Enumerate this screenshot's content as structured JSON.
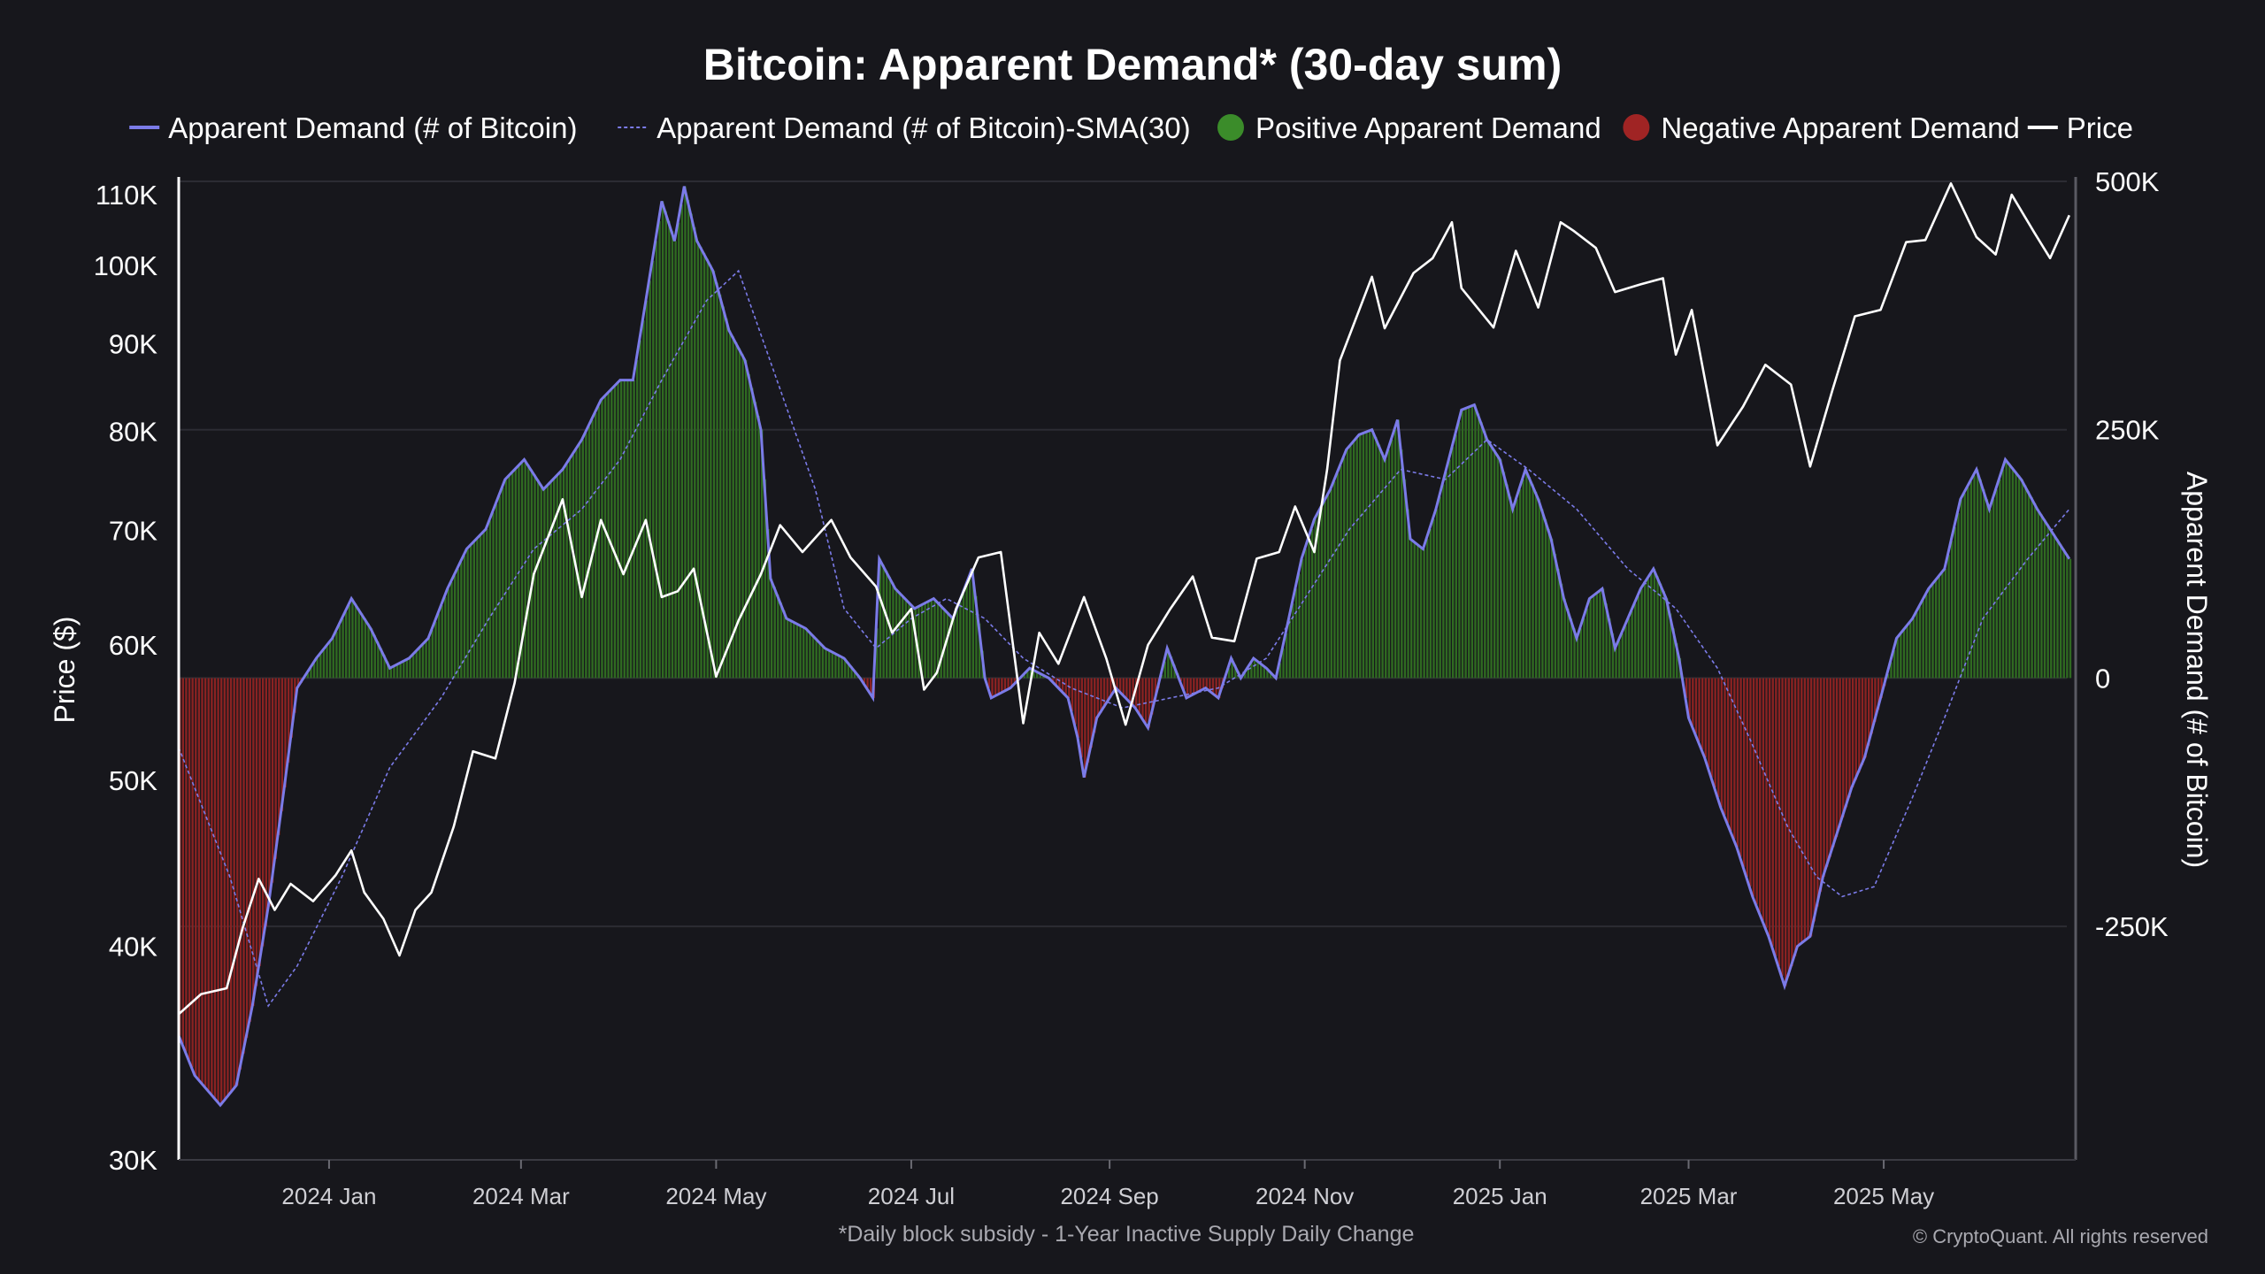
{
  "chart_data": {
    "type": "bar+line",
    "title": "Bitcoin: Apparent Demand* (30-day sum)",
    "footnote": "*Daily block subsidy - 1-Year Inactive Supply Daily Change",
    "credit": "© CryptoQuant. All rights reserved",
    "legend": [
      {
        "name": "Apparent Demand (# of Bitcoin)",
        "marker": "line",
        "color": "#7b7be8"
      },
      {
        "name": "Apparent Demand (# of Bitcoin)-SMA(30)",
        "marker": "dashed-line",
        "color": "#7b7be8"
      },
      {
        "name": "Positive Apparent Demand",
        "marker": "dot",
        "color": "#3b8c2a"
      },
      {
        "name": "Negative Apparent Demand",
        "marker": "dot",
        "color": "#a02424"
      },
      {
        "name": "Price",
        "marker": "line",
        "color": "#ffffff"
      }
    ],
    "legend_position": "top",
    "grid": true,
    "x_axis": {
      "type": "date",
      "range": [
        "2023-11-15",
        "2025-06-30"
      ],
      "ticks": [
        {
          "date": "2024-01-01",
          "label": "2024 Jan"
        },
        {
          "date": "2024-03-01",
          "label": "2024 Mar"
        },
        {
          "date": "2024-05-01",
          "label": "2024 May"
        },
        {
          "date": "2024-07-01",
          "label": "2024 Jul"
        },
        {
          "date": "2024-09-01",
          "label": "2024 Sep"
        },
        {
          "date": "2024-11-01",
          "label": "2024 Nov"
        },
        {
          "date": "2025-01-01",
          "label": "2025 Jan"
        },
        {
          "date": "2025-03-01",
          "label": "2025 Mar"
        },
        {
          "date": "2025-05-01",
          "label": "2025 May"
        }
      ]
    },
    "y_left": {
      "label": "Price ($)",
      "scale": "log",
      "range": [
        30000,
        112000
      ],
      "ticks": [
        {
          "value": 30000,
          "label": "30K"
        },
        {
          "value": 40000,
          "label": "40K"
        },
        {
          "value": 50000,
          "label": "50K"
        },
        {
          "value": 60000,
          "label": "60K"
        },
        {
          "value": 70000,
          "label": "70K"
        },
        {
          "value": 80000,
          "label": "80K"
        },
        {
          "value": 90000,
          "label": "90K"
        },
        {
          "value": 100000,
          "label": "100K"
        },
        {
          "value": 110000,
          "label": "110K"
        }
      ]
    },
    "y_right": {
      "label": "Apparent Demand (# of Bitcoin)",
      "scale": "linear",
      "range": [
        -485000,
        500000
      ],
      "ticks": [
        {
          "value": 500000,
          "label": "500K"
        },
        {
          "value": 250000,
          "label": "250K"
        },
        {
          "value": 0,
          "label": "0"
        },
        {
          "value": -250000,
          "label": "-250K"
        }
      ]
    },
    "demand": [
      [
        "2023-11-15",
        -360000
      ],
      [
        "2023-11-20",
        -400000
      ],
      [
        "2023-11-28",
        -430000
      ],
      [
        "2023-12-03",
        -410000
      ],
      [
        "2023-12-08",
        -330000
      ],
      [
        "2023-12-13",
        -230000
      ],
      [
        "2023-12-18",
        -110000
      ],
      [
        "2023-12-22",
        -10000
      ],
      [
        "2023-12-28",
        20000
      ],
      [
        "2024-01-02",
        40000
      ],
      [
        "2024-01-08",
        80000
      ],
      [
        "2024-01-14",
        50000
      ],
      [
        "2024-01-20",
        10000
      ],
      [
        "2024-01-26",
        20000
      ],
      [
        "2024-02-01",
        40000
      ],
      [
        "2024-02-07",
        90000
      ],
      [
        "2024-02-13",
        130000
      ],
      [
        "2024-02-19",
        150000
      ],
      [
        "2024-02-25",
        200000
      ],
      [
        "2024-03-02",
        220000
      ],
      [
        "2024-03-08",
        190000
      ],
      [
        "2024-03-14",
        210000
      ],
      [
        "2024-03-20",
        240000
      ],
      [
        "2024-03-26",
        280000
      ],
      [
        "2024-04-01",
        300000
      ],
      [
        "2024-04-05",
        300000
      ],
      [
        "2024-04-09",
        380000
      ],
      [
        "2024-04-14",
        480000
      ],
      [
        "2024-04-18",
        440000
      ],
      [
        "2024-04-21",
        495000
      ],
      [
        "2024-04-25",
        440000
      ],
      [
        "2024-04-30",
        410000
      ],
      [
        "2024-05-05",
        350000
      ],
      [
        "2024-05-10",
        320000
      ],
      [
        "2024-05-15",
        250000
      ],
      [
        "2024-05-18",
        100000
      ],
      [
        "2024-05-23",
        60000
      ],
      [
        "2024-05-29",
        50000
      ],
      [
        "2024-06-04",
        30000
      ],
      [
        "2024-06-10",
        20000
      ],
      [
        "2024-06-15",
        0
      ],
      [
        "2024-06-19",
        -20000
      ],
      [
        "2024-06-21",
        120000
      ],
      [
        "2024-06-26",
        90000
      ],
      [
        "2024-07-02",
        70000
      ],
      [
        "2024-07-08",
        80000
      ],
      [
        "2024-07-14",
        60000
      ],
      [
        "2024-07-20",
        110000
      ],
      [
        "2024-07-24",
        0
      ],
      [
        "2024-07-26",
        -20000
      ],
      [
        "2024-08-01",
        -10000
      ],
      [
        "2024-08-07",
        10000
      ],
      [
        "2024-08-13",
        0
      ],
      [
        "2024-08-19",
        -20000
      ],
      [
        "2024-08-22",
        -60000
      ],
      [
        "2024-08-24",
        -100000
      ],
      [
        "2024-08-28",
        -40000
      ],
      [
        "2024-09-03",
        -10000
      ],
      [
        "2024-09-09",
        -30000
      ],
      [
        "2024-09-13",
        -50000
      ],
      [
        "2024-09-19",
        30000
      ],
      [
        "2024-09-25",
        -20000
      ],
      [
        "2024-10-01",
        -10000
      ],
      [
        "2024-10-05",
        -20000
      ],
      [
        "2024-10-09",
        20000
      ],
      [
        "2024-10-12",
        0
      ],
      [
        "2024-10-16",
        20000
      ],
      [
        "2024-10-20",
        10000
      ],
      [
        "2024-10-23",
        0
      ],
      [
        "2024-10-27",
        60000
      ],
      [
        "2024-10-31",
        120000
      ],
      [
        "2024-11-04",
        160000
      ],
      [
        "2024-11-09",
        190000
      ],
      [
        "2024-11-14",
        230000
      ],
      [
        "2024-11-18",
        245000
      ],
      [
        "2024-11-22",
        250000
      ],
      [
        "2024-11-26",
        220000
      ],
      [
        "2024-11-30",
        260000
      ],
      [
        "2024-12-04",
        140000
      ],
      [
        "2024-12-08",
        130000
      ],
      [
        "2024-12-12",
        170000
      ],
      [
        "2024-12-16",
        220000
      ],
      [
        "2024-12-20",
        270000
      ],
      [
        "2024-12-24",
        275000
      ],
      [
        "2024-12-28",
        240000
      ],
      [
        "2025-01-01",
        220000
      ],
      [
        "2025-01-05",
        170000
      ],
      [
        "2025-01-09",
        210000
      ],
      [
        "2025-01-13",
        180000
      ],
      [
        "2025-01-17",
        140000
      ],
      [
        "2025-01-21",
        80000
      ],
      [
        "2025-01-25",
        40000
      ],
      [
        "2025-01-29",
        80000
      ],
      [
        "2025-02-02",
        90000
      ],
      [
        "2025-02-06",
        30000
      ],
      [
        "2025-02-10",
        60000
      ],
      [
        "2025-02-14",
        90000
      ],
      [
        "2025-02-18",
        110000
      ],
      [
        "2025-02-22",
        80000
      ],
      [
        "2025-02-26",
        20000
      ],
      [
        "2025-03-01",
        -40000
      ],
      [
        "2025-03-06",
        -80000
      ],
      [
        "2025-03-11",
        -130000
      ],
      [
        "2025-03-16",
        -170000
      ],
      [
        "2025-03-21",
        -220000
      ],
      [
        "2025-03-26",
        -260000
      ],
      [
        "2025-03-31",
        -310000
      ],
      [
        "2025-04-04",
        -270000
      ],
      [
        "2025-04-08",
        -260000
      ],
      [
        "2025-04-12",
        -200000
      ],
      [
        "2025-04-17",
        -150000
      ],
      [
        "2025-04-21",
        -110000
      ],
      [
        "2025-04-25",
        -80000
      ],
      [
        "2025-04-30",
        -20000
      ],
      [
        "2025-05-05",
        40000
      ],
      [
        "2025-05-10",
        60000
      ],
      [
        "2025-05-15",
        90000
      ],
      [
        "2025-05-20",
        110000
      ],
      [
        "2025-05-25",
        180000
      ],
      [
        "2025-05-30",
        210000
      ],
      [
        "2025-06-03",
        170000
      ],
      [
        "2025-06-08",
        220000
      ],
      [
        "2025-06-13",
        200000
      ],
      [
        "2025-06-18",
        170000
      ],
      [
        "2025-06-24",
        140000
      ],
      [
        "2025-06-28",
        120000
      ]
    ],
    "demand_sma": [
      [
        "2023-11-15",
        -70000
      ],
      [
        "2023-12-01",
        -200000
      ],
      [
        "2023-12-13",
        -330000
      ],
      [
        "2023-12-22",
        -290000
      ],
      [
        "2024-01-05",
        -200000
      ],
      [
        "2024-01-20",
        -90000
      ],
      [
        "2024-02-05",
        -20000
      ],
      [
        "2024-02-20",
        60000
      ],
      [
        "2024-03-05",
        130000
      ],
      [
        "2024-03-20",
        170000
      ],
      [
        "2024-04-01",
        220000
      ],
      [
        "2024-04-14",
        300000
      ],
      [
        "2024-04-28",
        380000
      ],
      [
        "2024-05-08",
        410000
      ],
      [
        "2024-05-20",
        300000
      ],
      [
        "2024-06-01",
        190000
      ],
      [
        "2024-06-10",
        70000
      ],
      [
        "2024-06-20",
        30000
      ],
      [
        "2024-07-01",
        60000
      ],
      [
        "2024-07-12",
        80000
      ],
      [
        "2024-07-24",
        60000
      ],
      [
        "2024-08-05",
        20000
      ],
      [
        "2024-08-20",
        -10000
      ],
      [
        "2024-09-05",
        -30000
      ],
      [
        "2024-09-20",
        -20000
      ],
      [
        "2024-10-05",
        -10000
      ],
      [
        "2024-10-20",
        20000
      ],
      [
        "2024-11-01",
        80000
      ],
      [
        "2024-11-15",
        150000
      ],
      [
        "2024-12-01",
        210000
      ],
      [
        "2024-12-15",
        200000
      ],
      [
        "2024-12-28",
        240000
      ],
      [
        "2025-01-10",
        210000
      ],
      [
        "2025-01-25",
        170000
      ],
      [
        "2025-02-10",
        110000
      ],
      [
        "2025-02-25",
        70000
      ],
      [
        "2025-03-10",
        10000
      ],
      [
        "2025-03-20",
        -60000
      ],
      [
        "2025-04-01",
        -150000
      ],
      [
        "2025-04-10",
        -200000
      ],
      [
        "2025-04-18",
        -220000
      ],
      [
        "2025-04-28",
        -210000
      ],
      [
        "2025-05-10",
        -120000
      ],
      [
        "2025-05-20",
        -40000
      ],
      [
        "2025-06-01",
        60000
      ],
      [
        "2025-06-15",
        120000
      ],
      [
        "2025-06-28",
        170000
      ]
    ],
    "price": [
      [
        "2023-11-15",
        36500
      ],
      [
        "2023-11-22",
        37500
      ],
      [
        "2023-11-30",
        37800
      ],
      [
        "2023-12-05",
        41000
      ],
      [
        "2023-12-10",
        43800
      ],
      [
        "2023-12-15",
        42000
      ],
      [
        "2023-12-20",
        43500
      ],
      [
        "2023-12-27",
        42500
      ],
      [
        "2024-01-03",
        44000
      ],
      [
        "2024-01-08",
        45500
      ],
      [
        "2024-01-12",
        43000
      ],
      [
        "2024-01-18",
        41500
      ],
      [
        "2024-01-23",
        39500
      ],
      [
        "2024-01-28",
        42000
      ],
      [
        "2024-02-02",
        43000
      ],
      [
        "2024-02-09",
        47000
      ],
      [
        "2024-02-15",
        52000
      ],
      [
        "2024-02-22",
        51500
      ],
      [
        "2024-02-28",
        57000
      ],
      [
        "2024-03-05",
        66000
      ],
      [
        "2024-03-14",
        73000
      ],
      [
        "2024-03-20",
        64000
      ],
      [
        "2024-03-26",
        71000
      ],
      [
        "2024-04-02",
        66000
      ],
      [
        "2024-04-09",
        71000
      ],
      [
        "2024-04-14",
        64000
      ],
      [
        "2024-04-19",
        64500
      ],
      [
        "2024-04-24",
        66500
      ],
      [
        "2024-05-01",
        57500
      ],
      [
        "2024-05-08",
        62000
      ],
      [
        "2024-05-15",
        66000
      ],
      [
        "2024-05-21",
        70500
      ],
      [
        "2024-05-28",
        68000
      ],
      [
        "2024-06-06",
        71000
      ],
      [
        "2024-06-12",
        67500
      ],
      [
        "2024-06-20",
        64900
      ],
      [
        "2024-06-25",
        61000
      ],
      [
        "2024-07-01",
        63000
      ],
      [
        "2024-07-05",
        56500
      ],
      [
        "2024-07-09",
        57800
      ],
      [
        "2024-07-15",
        63000
      ],
      [
        "2024-07-22",
        67500
      ],
      [
        "2024-07-29",
        68000
      ],
      [
        "2024-08-05",
        54000
      ],
      [
        "2024-08-10",
        61000
      ],
      [
        "2024-08-16",
        58500
      ],
      [
        "2024-08-24",
        64000
      ],
      [
        "2024-08-31",
        58900
      ],
      [
        "2024-09-06",
        53900
      ],
      [
        "2024-09-13",
        60000
      ],
      [
        "2024-09-20",
        63000
      ],
      [
        "2024-09-27",
        65800
      ],
      [
        "2024-10-03",
        60600
      ],
      [
        "2024-10-10",
        60300
      ],
      [
        "2024-10-17",
        67400
      ],
      [
        "2024-10-24",
        68000
      ],
      [
        "2024-10-29",
        72300
      ],
      [
        "2024-11-04",
        68000
      ],
      [
        "2024-11-08",
        76000
      ],
      [
        "2024-11-12",
        88000
      ],
      [
        "2024-11-22",
        98500
      ],
      [
        "2024-11-26",
        91900
      ],
      [
        "2024-12-05",
        99000
      ],
      [
        "2024-12-11",
        101000
      ],
      [
        "2024-12-17",
        106000
      ],
      [
        "2024-12-20",
        97000
      ],
      [
        "2024-12-30",
        92000
      ],
      [
        "2025-01-06",
        102000
      ],
      [
        "2025-01-13",
        94500
      ],
      [
        "2025-01-20",
        106000
      ],
      [
        "2025-01-24",
        104800
      ],
      [
        "2025-01-31",
        102400
      ],
      [
        "2025-02-06",
        96500
      ],
      [
        "2025-02-14",
        97500
      ],
      [
        "2025-02-21",
        98300
      ],
      [
        "2025-02-25",
        88700
      ],
      [
        "2025-03-02",
        94200
      ],
      [
        "2025-03-10",
        78500
      ],
      [
        "2025-03-18",
        82700
      ],
      [
        "2025-03-25",
        87500
      ],
      [
        "2025-04-02",
        85200
      ],
      [
        "2025-04-08",
        76300
      ],
      [
        "2025-04-15",
        84600
      ],
      [
        "2025-04-22",
        93400
      ],
      [
        "2025-04-30",
        94200
      ],
      [
        "2025-05-08",
        103200
      ],
      [
        "2025-05-14",
        103500
      ],
      [
        "2025-05-22",
        111700
      ],
      [
        "2025-05-30",
        103900
      ],
      [
        "2025-06-05",
        101500
      ],
      [
        "2025-06-10",
        110000
      ],
      [
        "2025-06-17",
        104600
      ],
      [
        "2025-06-22",
        101000
      ],
      [
        "2025-06-28",
        107000
      ]
    ]
  }
}
